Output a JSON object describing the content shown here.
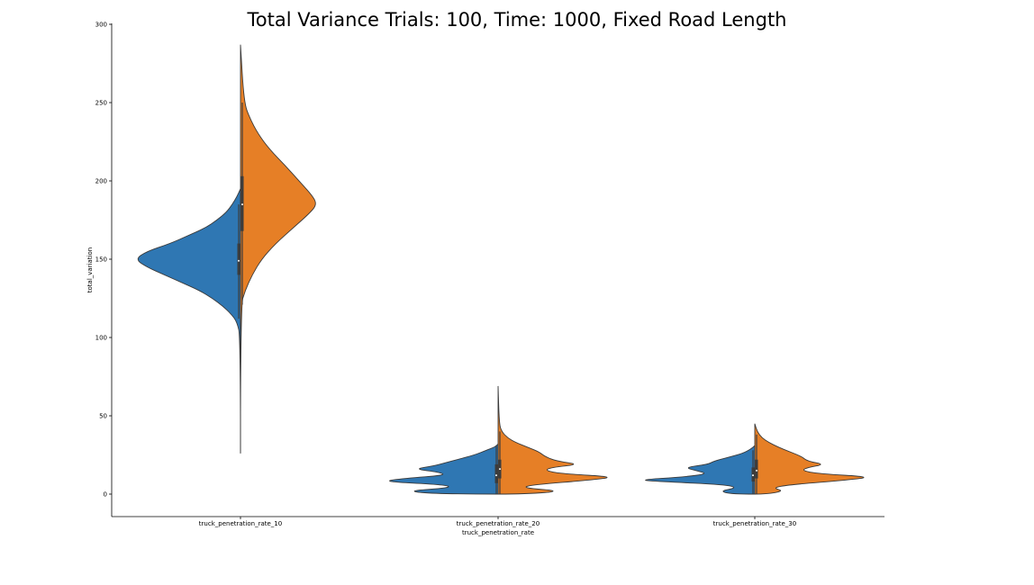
{
  "chart_data": {
    "type": "violin",
    "title": "Total Variance Trials: 100, Time: 1000, Fixed Road Length",
    "xlabel": "truck_penetration_rate",
    "ylabel": "total_variation",
    "ylim": [
      -15,
      300
    ],
    "yticks": [
      "0",
      "50",
      "100",
      "150",
      "200",
      "250",
      "300"
    ],
    "categories": [
      "truck_penetration_rate_10",
      "truck_penetration_rate_20",
      "truck_penetration_rate_30"
    ],
    "split": true,
    "colors": {
      "left": "#2f77b3",
      "right": "#e67f26",
      "outline": "#3a3a3a",
      "box": "#3c3c3c"
    },
    "grid": false,
    "violins": [
      {
        "category": "truck_penetration_rate_10",
        "left_profile": [
          [
            26,
            0
          ],
          [
            100,
            0
          ],
          [
            110,
            0.03
          ],
          [
            115,
            0.08
          ],
          [
            120,
            0.15
          ],
          [
            125,
            0.24
          ],
          [
            130,
            0.35
          ],
          [
            135,
            0.5
          ],
          [
            140,
            0.65
          ],
          [
            145,
            0.8
          ],
          [
            150,
            0.9
          ],
          [
            155,
            0.8
          ],
          [
            160,
            0.6
          ],
          [
            165,
            0.45
          ],
          [
            170,
            0.3
          ],
          [
            175,
            0.2
          ],
          [
            180,
            0.12
          ],
          [
            185,
            0.07
          ],
          [
            190,
            0.03
          ],
          [
            195,
            0.0
          ]
        ],
        "right_profile": [
          [
            26,
            0
          ],
          [
            120,
            0
          ],
          [
            130,
            0.04
          ],
          [
            140,
            0.1
          ],
          [
            150,
            0.18
          ],
          [
            160,
            0.3
          ],
          [
            170,
            0.45
          ],
          [
            180,
            0.6
          ],
          [
            185,
            0.65
          ],
          [
            190,
            0.62
          ],
          [
            200,
            0.5
          ],
          [
            210,
            0.38
          ],
          [
            220,
            0.25
          ],
          [
            230,
            0.15
          ],
          [
            240,
            0.08
          ],
          [
            250,
            0.03
          ],
          [
            287,
            0
          ]
        ],
        "left_box": {
          "q1": 140,
          "q3": 160,
          "median": 149,
          "whisker_low": 112,
          "whisker_high": 185
        },
        "right_box": {
          "q1": 168,
          "q3": 203,
          "median": 185,
          "whisker_low": 121,
          "whisker_high": 250
        }
      },
      {
        "category": "truck_penetration_rate_20",
        "left_profile": [
          [
            0,
            0
          ],
          [
            0,
            0.5
          ],
          [
            2,
            0.8
          ],
          [
            4,
            0.4
          ],
          [
            6,
            0.45
          ],
          [
            8,
            1.0
          ],
          [
            10,
            0.8
          ],
          [
            12,
            0.45
          ],
          [
            14,
            0.5
          ],
          [
            16,
            0.72
          ],
          [
            18,
            0.55
          ],
          [
            20,
            0.45
          ],
          [
            22,
            0.35
          ],
          [
            25,
            0.2
          ],
          [
            28,
            0.1
          ],
          [
            30,
            0.03
          ],
          [
            32,
            0
          ]
        ],
        "right_profile": [
          [
            0,
            0
          ],
          [
            0,
            0.25
          ],
          [
            2,
            0.55
          ],
          [
            4,
            0.2
          ],
          [
            6,
            0.3
          ],
          [
            9,
            0.8
          ],
          [
            11,
            1.0
          ],
          [
            13,
            0.55
          ],
          [
            15,
            0.4
          ],
          [
            17,
            0.45
          ],
          [
            19,
            0.7
          ],
          [
            21,
            0.5
          ],
          [
            24,
            0.4
          ],
          [
            27,
            0.35
          ],
          [
            30,
            0.25
          ],
          [
            33,
            0.15
          ],
          [
            36,
            0.08
          ],
          [
            40,
            0.03
          ],
          [
            45,
            0.01
          ],
          [
            69,
            0
          ]
        ],
        "left_box": {
          "q1": 7,
          "q3": 19,
          "median": 12,
          "whisker_low": 0,
          "whisker_high": 31
        },
        "right_box": {
          "q1": 10,
          "q3": 22,
          "median": 16,
          "whisker_low": 0,
          "whisker_high": 40
        }
      },
      {
        "category": "truck_penetration_rate_30",
        "left_profile": [
          [
            0,
            0
          ],
          [
            0,
            0.2
          ],
          [
            2,
            0.3
          ],
          [
            4,
            0.15
          ],
          [
            6,
            0.25
          ],
          [
            8,
            0.8
          ],
          [
            9,
            1.0
          ],
          [
            11,
            0.6
          ],
          [
            13,
            0.4
          ],
          [
            15,
            0.5
          ],
          [
            17,
            0.6
          ],
          [
            19,
            0.4
          ],
          [
            21,
            0.35
          ],
          [
            23,
            0.25
          ],
          [
            26,
            0.1
          ],
          [
            29,
            0.03
          ],
          [
            31,
            0
          ]
        ],
        "right_profile": [
          [
            0,
            0
          ],
          [
            0,
            0.1
          ],
          [
            2,
            0.25
          ],
          [
            4,
            0.15
          ],
          [
            6,
            0.3
          ],
          [
            9,
            0.8
          ],
          [
            11,
            1.0
          ],
          [
            13,
            0.55
          ],
          [
            15,
            0.4
          ],
          [
            17,
            0.45
          ],
          [
            19,
            0.6
          ],
          [
            21,
            0.45
          ],
          [
            24,
            0.4
          ],
          [
            27,
            0.3
          ],
          [
            30,
            0.2
          ],
          [
            33,
            0.12
          ],
          [
            36,
            0.06
          ],
          [
            40,
            0.02
          ],
          [
            45,
            0
          ]
        ],
        "left_box": {
          "q1": 8,
          "q3": 17,
          "median": 12,
          "whisker_low": 0,
          "whisker_high": 28
        },
        "right_box": {
          "q1": 10,
          "q3": 22,
          "median": 15,
          "whisker_low": 0,
          "whisker_high": 38
        }
      }
    ]
  }
}
